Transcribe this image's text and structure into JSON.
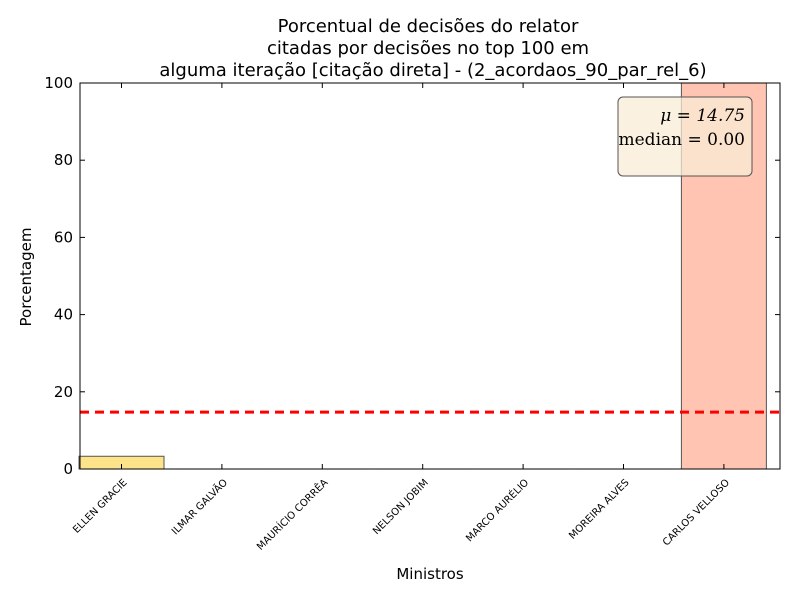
{
  "chart_data": {
    "type": "bar",
    "title_lines": [
      "Porcentual de decisões do relator",
      "citadas por decisões no top 100 em",
      "alguma iteração [citação direta] - (2_acordaos_90_par_rel_6)"
    ],
    "xlabel": "Ministros",
    "ylabel": "Porcentagem",
    "ylim": [
      0,
      100
    ],
    "yticks": [
      "0",
      "20",
      "40",
      "60",
      "80",
      "100"
    ],
    "categories": [
      "ELLEN GRACIE",
      "ILMAR GALVÃO",
      "MAURÍCIO CORRÊA",
      "NELSON JOBIM",
      "MARCO AURÉLIO",
      "MOREIRA ALVES",
      "CARLOS VELLOSO"
    ],
    "values": [
      3.3,
      0,
      0,
      0,
      0,
      0,
      100
    ],
    "bar_colors": [
      "#fde38a",
      "#fde38a",
      "#fde38a",
      "#fde38a",
      "#fde38a",
      "#fde38a",
      "#ffc4b2"
    ],
    "mean_line": {
      "value": 14.75,
      "color": "#ff0000"
    },
    "stats_box": {
      "mean_text": "μ = 14.75",
      "median_text": "median = 0.00",
      "placement": "top-right",
      "background": "#f8ecd6"
    },
    "grid": false
  }
}
